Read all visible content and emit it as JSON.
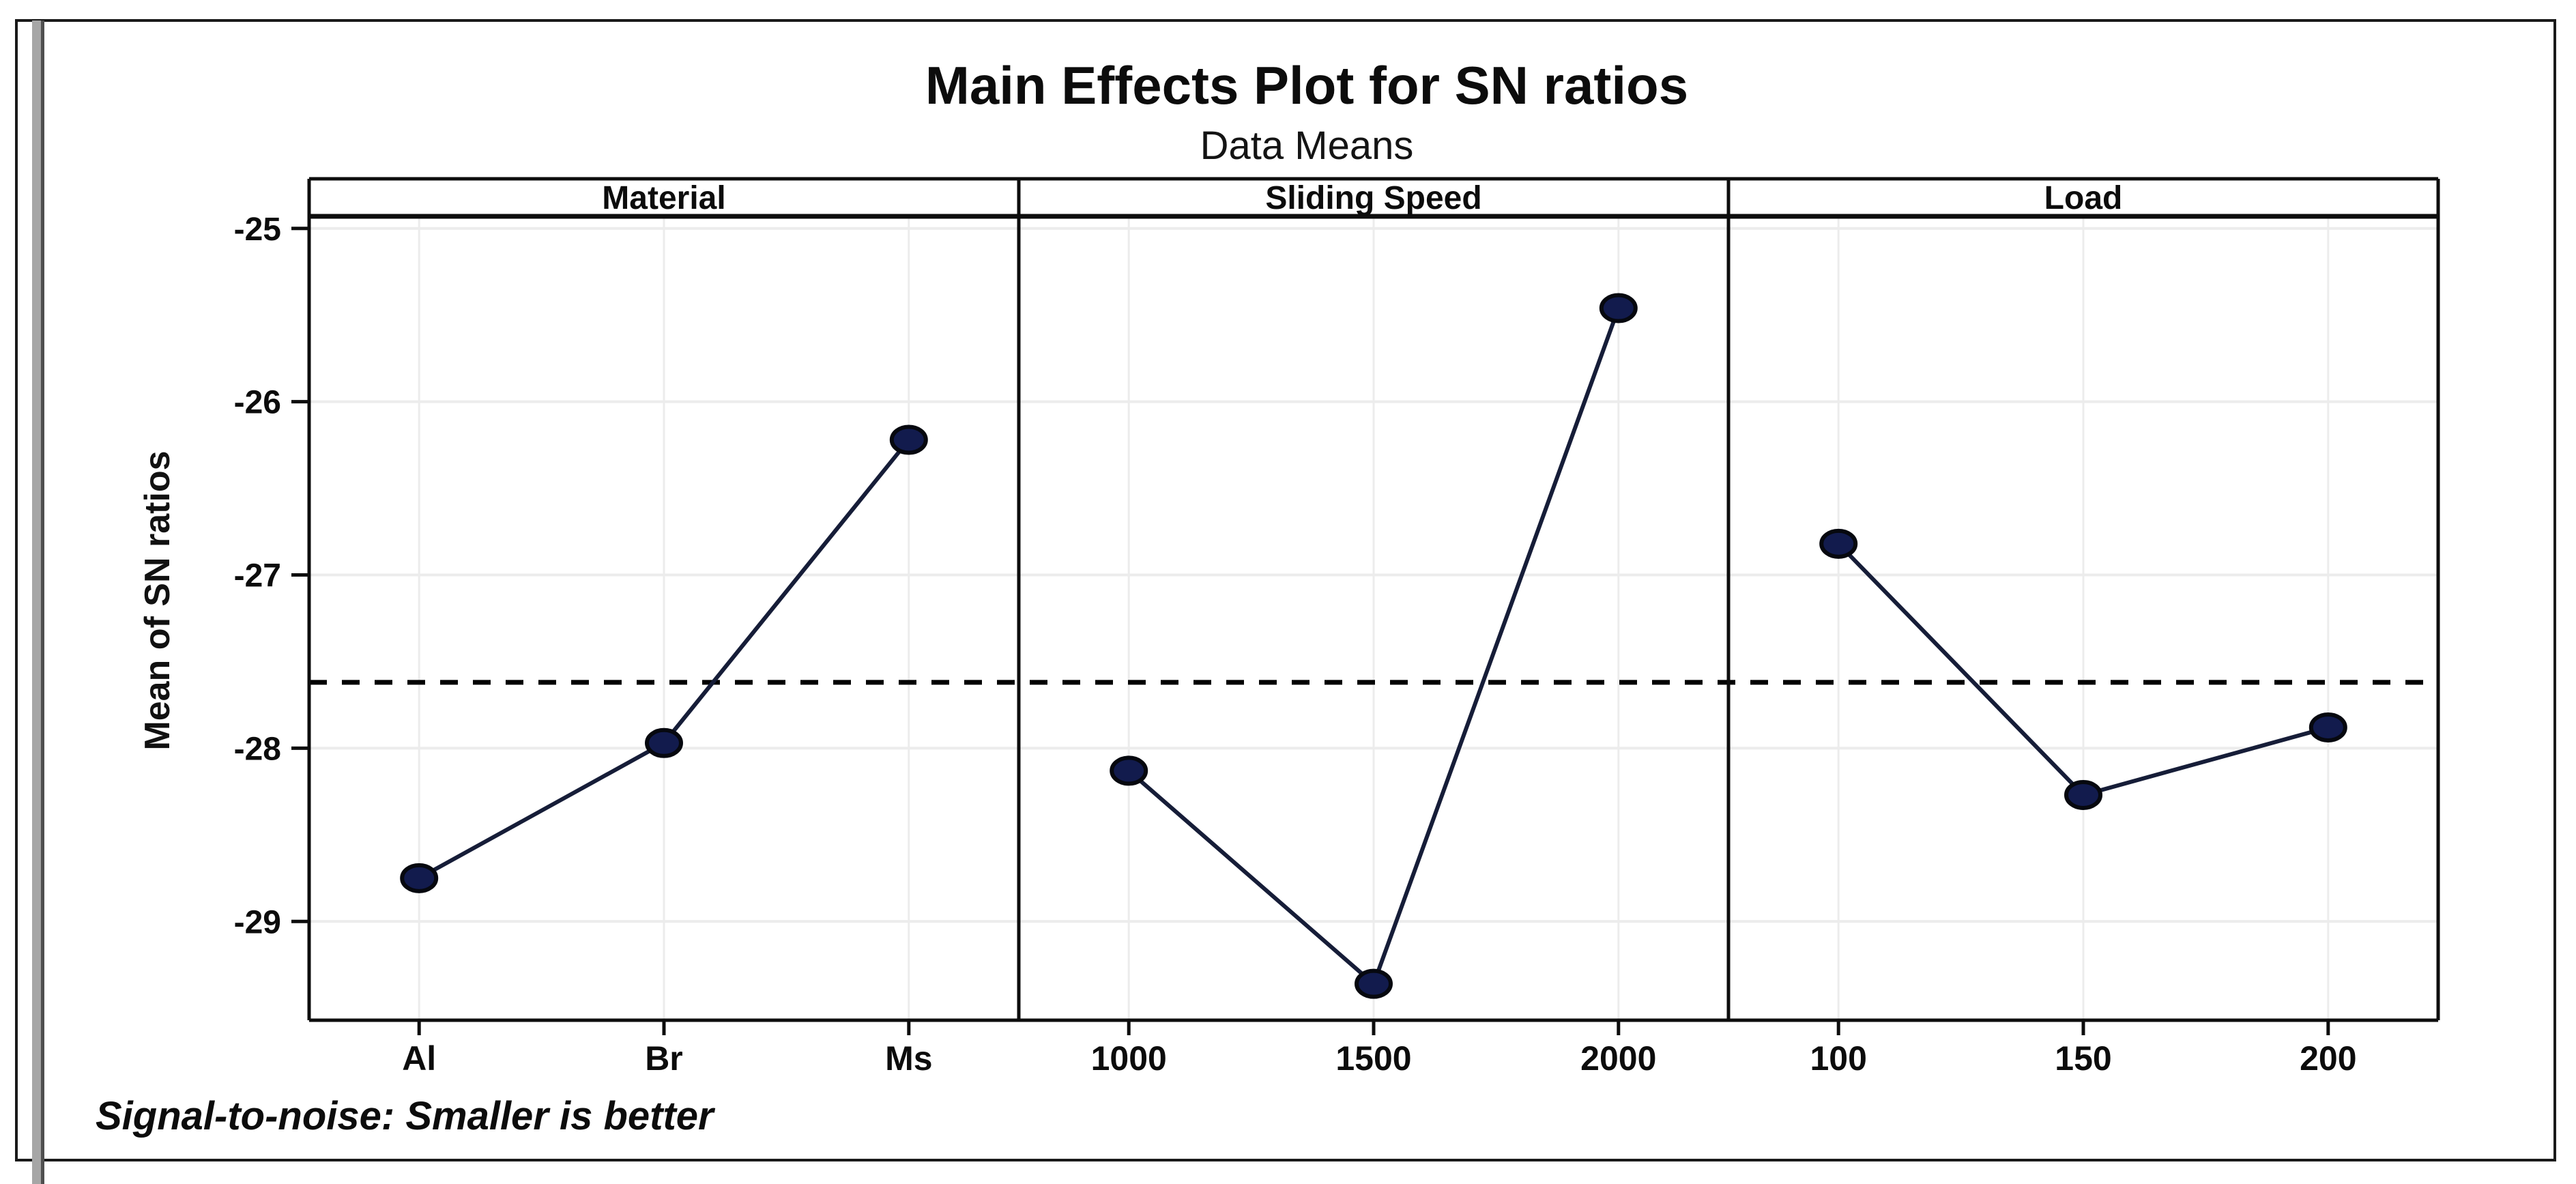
{
  "figure": {
    "title": "Main Effects Plot for SN ratios",
    "subtitle": "Data Means",
    "y_axis_label": "Mean of SN ratios",
    "footnote": "Signal-to-noise: Smaller is better"
  },
  "chart_data": {
    "type": "line",
    "title": "Main Effects Plot for SN ratios",
    "subtitle": "Data Means",
    "ylabel": "Mean of SN ratios",
    "footnote": "Signal-to-noise: Smaller is better",
    "grid": true,
    "legend": "none",
    "ylim": [
      -29.57,
      -24.93
    ],
    "yticks": [
      -25,
      -26,
      -27,
      -28,
      -29
    ],
    "reference_line": {
      "value": -27.62,
      "style": "dashed",
      "meaning": "overall mean of SN ratios"
    },
    "panels": [
      {
        "header": "Material",
        "categories": [
          "Al",
          "Br",
          "Ms"
        ],
        "values": [
          -28.75,
          -27.97,
          -26.22
        ]
      },
      {
        "header": "Sliding Speed",
        "categories": [
          "1000",
          "1500",
          "2000"
        ],
        "values": [
          -28.13,
          -29.36,
          -25.46
        ]
      },
      {
        "header": "Load",
        "categories": [
          "100",
          "150",
          "200"
        ],
        "values": [
          -26.82,
          -28.27,
          -27.88
        ]
      }
    ],
    "colors": {
      "marker": "#121b4d",
      "marker_edge": "#06080f",
      "line": "#161d38",
      "grid": "#ececec",
      "reference": "#000000",
      "frame": "#0d0d0d",
      "text": "#0c0c0c",
      "page_edge_bar": "#9e9e9e"
    }
  }
}
